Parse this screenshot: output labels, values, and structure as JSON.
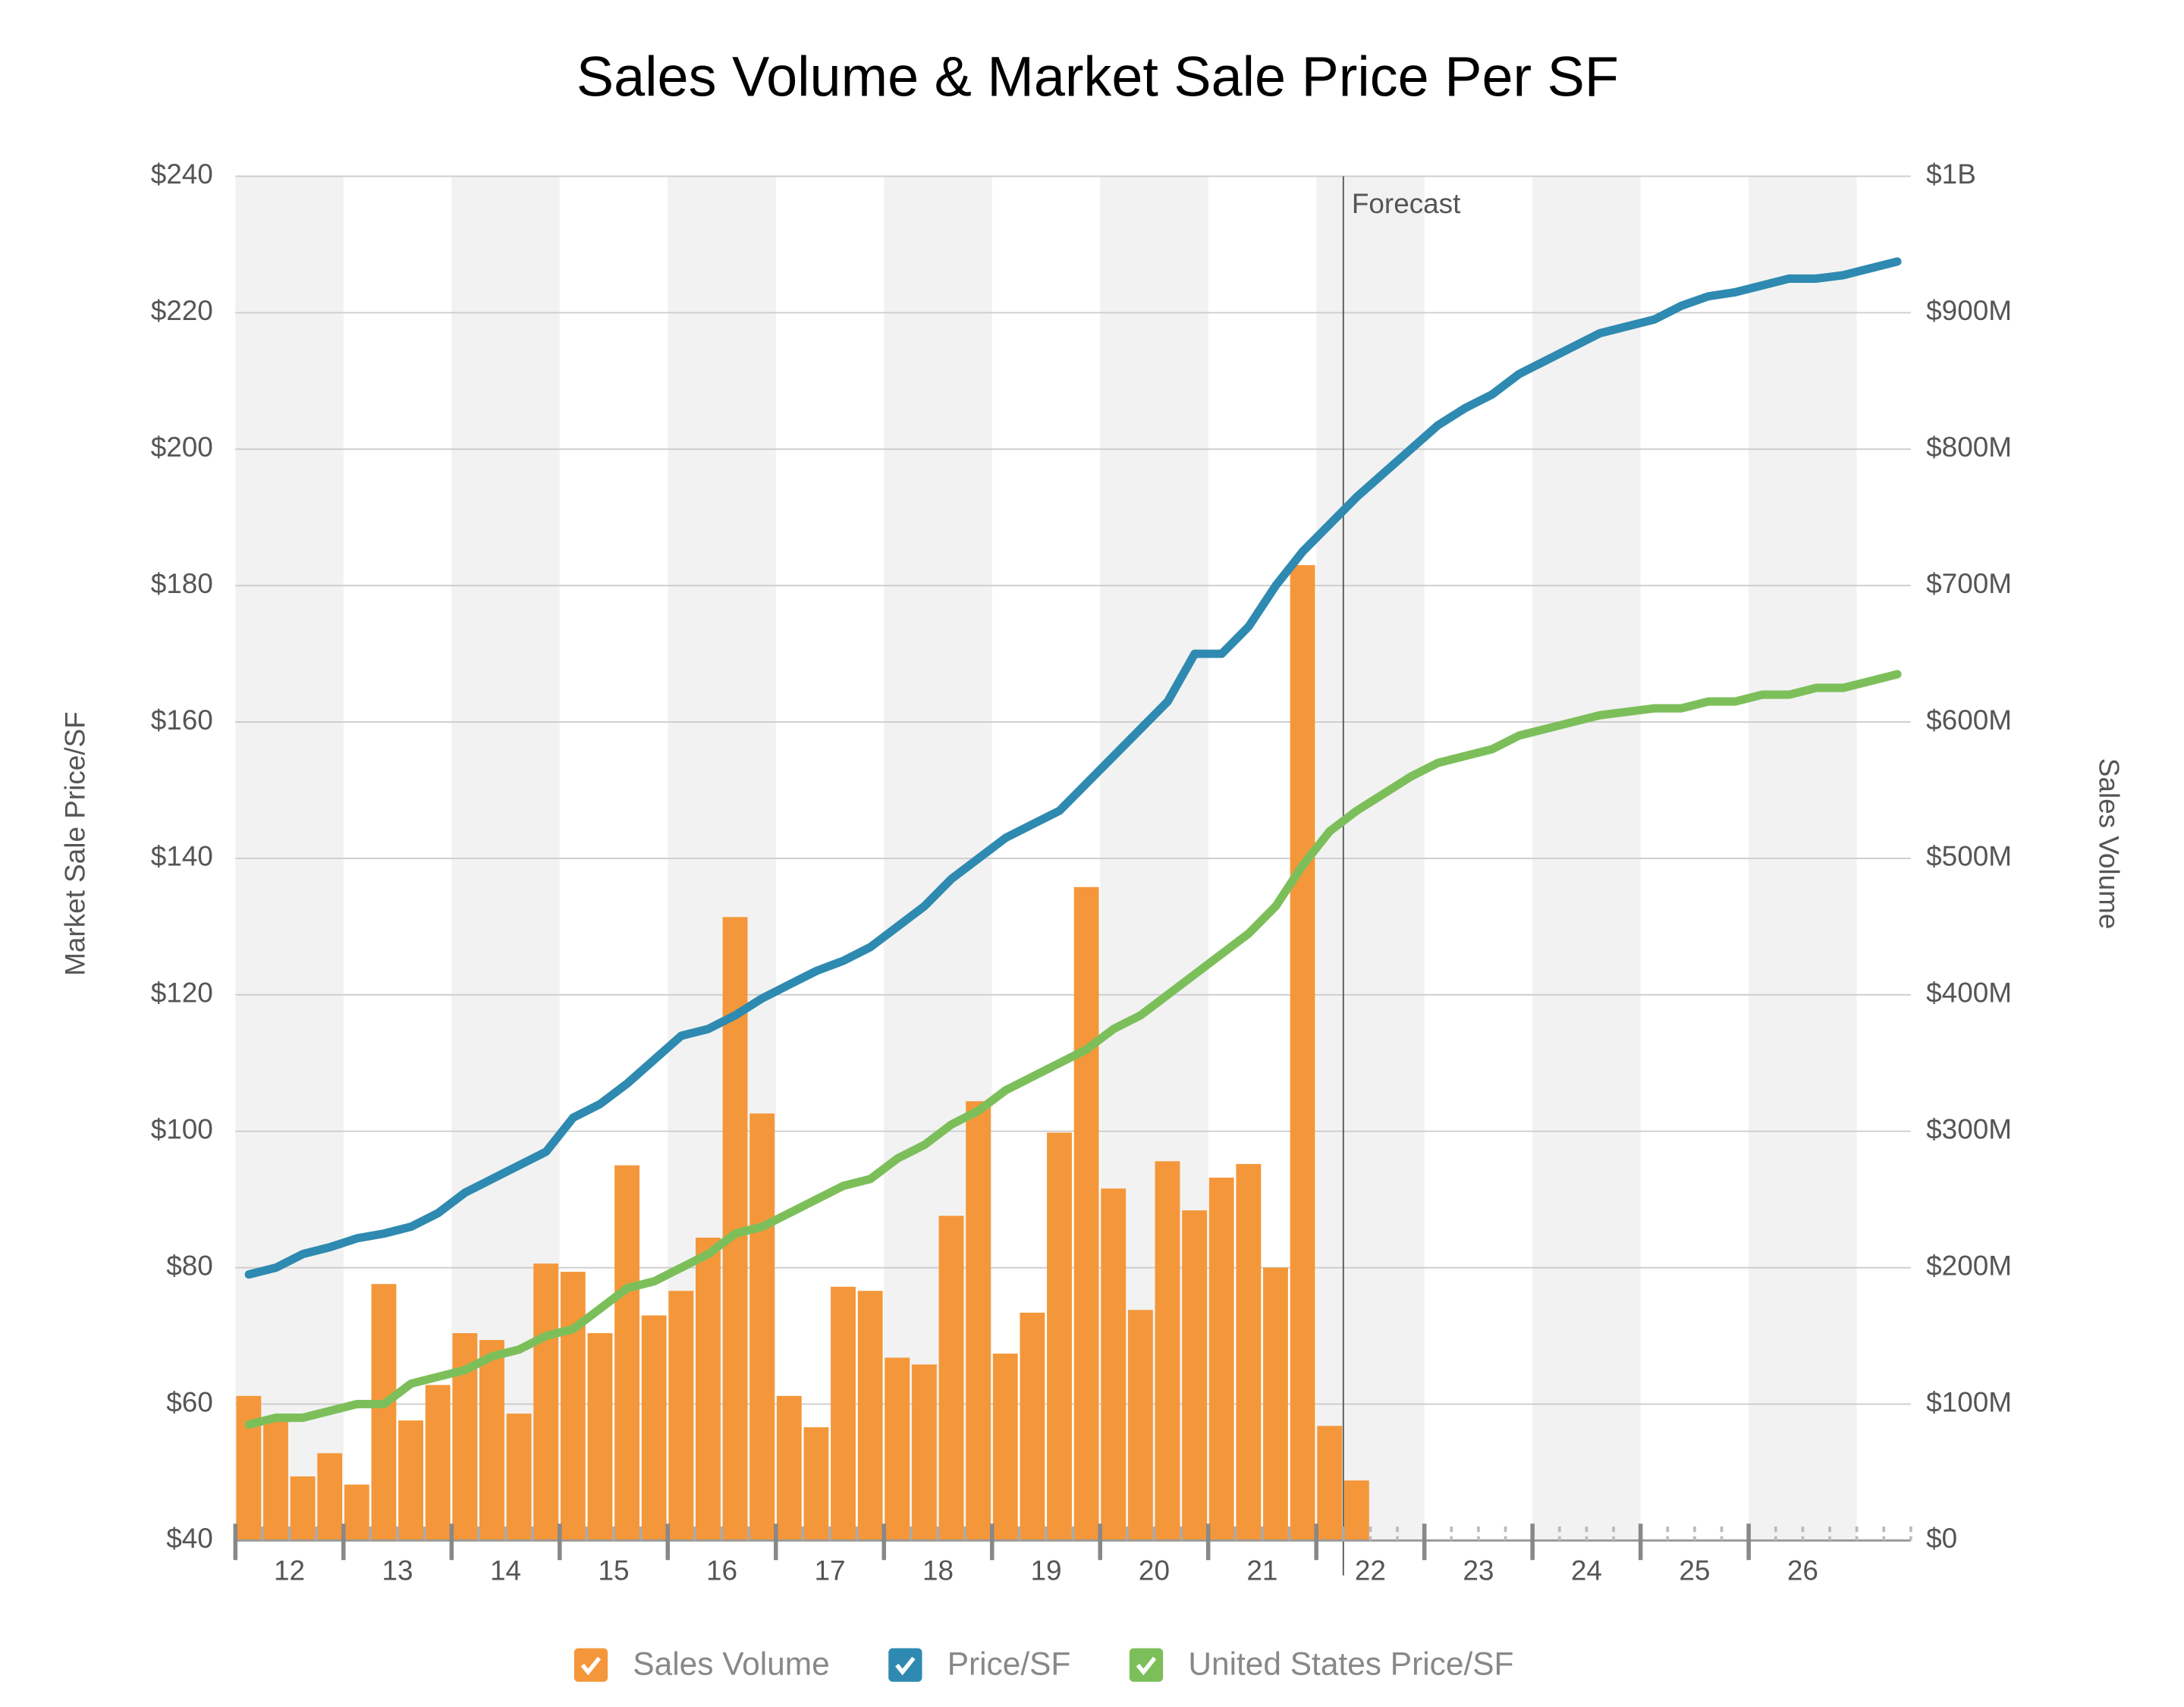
{
  "chart_data": {
    "type": "combo",
    "title": "Sales Volume & Market Sale Price Per SF",
    "y_label": "Market Sale Price/SF",
    "y2_label": "Sales Volume",
    "categories": [
      "12",
      null,
      null,
      null,
      "13",
      null,
      null,
      null,
      "14",
      null,
      null,
      null,
      "15",
      null,
      null,
      null,
      "16",
      null,
      null,
      null,
      "17",
      null,
      null,
      null,
      "18",
      null,
      null,
      null,
      "19",
      null,
      null,
      null,
      "20",
      null,
      null,
      null,
      "21",
      null,
      null,
      null,
      "22",
      null,
      null,
      null,
      "23",
      null,
      null,
      null,
      "24",
      null,
      null,
      null,
      "25",
      null,
      null,
      null,
      "26",
      null,
      null,
      null,
      null,
      null
    ],
    "ylim": [
      40,
      240
    ],
    "yticks": [
      {
        "value": 40,
        "label": "$40"
      },
      {
        "value": 60,
        "label": "$60"
      },
      {
        "value": 80,
        "label": "$80"
      },
      {
        "value": 100,
        "label": "$100"
      },
      {
        "value": 120,
        "label": "$120"
      },
      {
        "value": 140,
        "label": "$140"
      },
      {
        "value": 160,
        "label": "$160"
      },
      {
        "value": 180,
        "label": "$180"
      },
      {
        "value": 200,
        "label": "$200"
      },
      {
        "value": 220,
        "label": "$220"
      },
      {
        "value": 240,
        "label": "$240"
      }
    ],
    "y2lim": [
      0,
      1000000000
    ],
    "y2ticks": [
      {
        "value": 0,
        "label": "$0"
      },
      {
        "value": 100000000,
        "label": "$100M"
      },
      {
        "value": 200000000,
        "label": "$200M"
      },
      {
        "value": 300000000,
        "label": "$300M"
      },
      {
        "value": 400000000,
        "label": "$400M"
      },
      {
        "value": 500000000,
        "label": "$500M"
      },
      {
        "value": 600000000,
        "label": "$600M"
      },
      {
        "value": 700000000,
        "label": "$700M"
      },
      {
        "value": 800000000,
        "label": "$800M"
      },
      {
        "value": 900000000,
        "label": "$900M"
      },
      {
        "value": 1000000000,
        "label": "$1B"
      }
    ],
    "grid": true,
    "annotation": {
      "text": "Forecast",
      "x": 41
    },
    "series": [
      {
        "name": "Sales Volume",
        "type": "bar",
        "axis": "y2",
        "color": "#f4973a",
        "values": [
          106000000,
          88000000,
          47000000,
          64000000,
          41000000,
          188000000,
          88000000,
          114000000,
          152000000,
          147000000,
          93000000,
          203000000,
          197000000,
          152000000,
          275000000,
          165000000,
          183000000,
          222000000,
          457000000,
          313000000,
          106000000,
          83000000,
          186000000,
          183000000,
          134000000,
          129000000,
          238000000,
          322000000,
          137000000,
          167000000,
          299000000,
          479000000,
          258000000,
          169000000,
          278000000,
          242000000,
          266000000,
          276000000,
          200000000,
          715000000,
          84000000,
          44000000,
          null,
          null,
          null,
          null,
          null,
          null,
          null,
          null,
          null,
          null,
          null,
          null,
          null,
          null,
          null,
          null,
          null,
          null,
          null,
          null
        ]
      },
      {
        "name": "Price/SF",
        "type": "line",
        "color": "#2e8ab0",
        "values": [
          79,
          80,
          82,
          83,
          84.3,
          85,
          86,
          88,
          91,
          93,
          95,
          97,
          102,
          104,
          107,
          110.5,
          114,
          115,
          117,
          119.5,
          121.5,
          123.5,
          125,
          127,
          130,
          133,
          137,
          140,
          143,
          145,
          147,
          151,
          155,
          159,
          163,
          170,
          170,
          174,
          180,
          185,
          189,
          193,
          196.5,
          200,
          203.5,
          206,
          208,
          211,
          213,
          215,
          217,
          218,
          219,
          221,
          222.4,
          223,
          224,
          225,
          225,
          225.5,
          226.5,
          227.5
        ]
      },
      {
        "name": "United States Price/SF",
        "type": "line",
        "color": "#7cbf5a",
        "values": [
          57,
          58,
          58,
          59,
          60,
          60,
          63,
          64,
          65,
          67,
          68,
          70,
          71,
          74,
          77,
          78,
          80,
          82,
          85,
          86,
          88,
          90,
          92,
          93,
          96,
          98,
          101,
          103,
          106,
          108,
          110,
          112,
          115,
          117,
          120,
          123,
          126,
          129,
          133,
          139,
          144,
          147,
          149.5,
          152,
          154,
          155,
          156,
          158,
          159,
          160,
          161,
          161.5,
          162,
          162,
          163,
          163,
          164,
          164,
          165,
          165,
          166,
          167
        ]
      }
    ]
  }
}
